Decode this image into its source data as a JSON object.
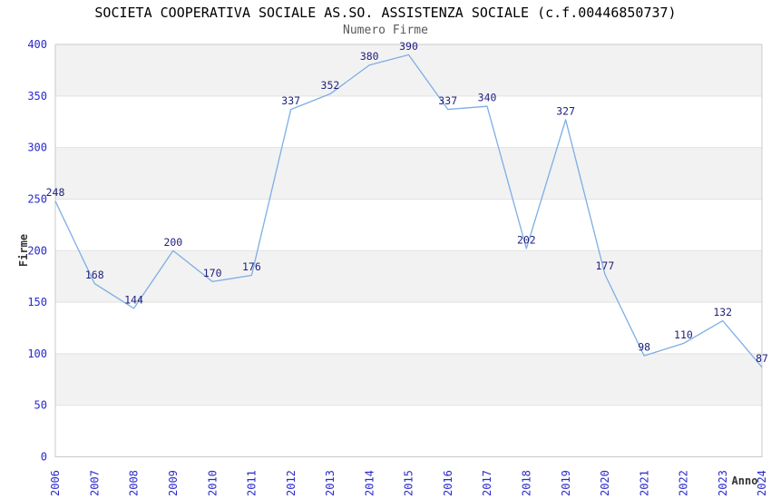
{
  "chart_data": {
    "type": "line",
    "title": "SOCIETA COOPERATIVA SOCIALE AS.SO. ASSISTENZA SOCIALE (c.f.00446850737)",
    "subtitle": "Numero Firme",
    "xlabel": "Anno",
    "ylabel": "Firme",
    "categories": [
      "2006",
      "2007",
      "2008",
      "2009",
      "2010",
      "2011",
      "2012",
      "2013",
      "2014",
      "2015",
      "2016",
      "2017",
      "2018",
      "2019",
      "2020",
      "2021",
      "2022",
      "2023",
      "2024"
    ],
    "series": [
      {
        "name": "Numero Firme",
        "values": [
          248,
          168,
          144,
          200,
          170,
          176,
          337,
          352,
          380,
          390,
          337,
          340,
          202,
          327,
          177,
          98,
          110,
          132,
          87
        ]
      }
    ],
    "point_labels": [
      "248",
      "168",
      "144",
      "200",
      "170",
      "176",
      "337",
      "352",
      "380",
      "390",
      "337",
      "340",
      "202",
      "327",
      "177",
      "98",
      "110",
      "132",
      "87"
    ],
    "ylim": [
      0,
      400
    ],
    "ytick_step": 50,
    "yticks": [
      0,
      50,
      100,
      150,
      200,
      250,
      300,
      350,
      400
    ],
    "legend_position": "none",
    "grid": "alternating-horizontal-bands",
    "x_tick_rotation": -90,
    "colors": {
      "line": "#7daee4",
      "tick_label": "#2929cc",
      "point_label": "#1f1f7d",
      "band": "#f2f2f2",
      "grid": "#e2e2e2",
      "border": "#cacaca",
      "title": "#000000",
      "subtitle": "#595959",
      "axis_title": "#333333",
      "background": "#ffffff"
    }
  }
}
